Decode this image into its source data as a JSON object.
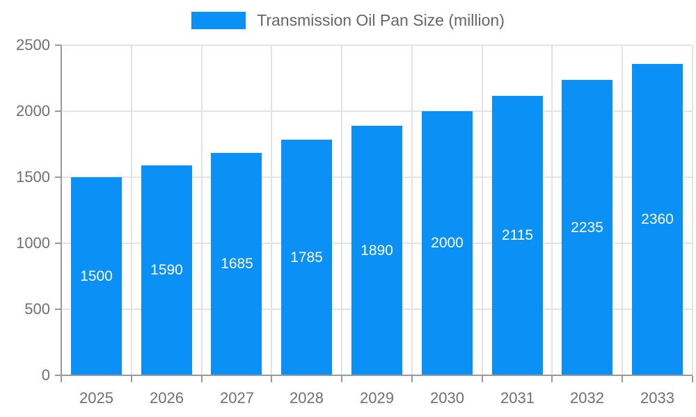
{
  "legend": {
    "series_label": "Transmission Oil Pan Size (million)"
  },
  "chart_data": {
    "type": "bar",
    "title": "Transmission Oil Pan Size (million)",
    "categories": [
      "2025",
      "2026",
      "2027",
      "2028",
      "2029",
      "2030",
      "2031",
      "2032",
      "2033"
    ],
    "values": [
      1500,
      1590,
      1685,
      1785,
      1890,
      2000,
      2115,
      2235,
      2360
    ],
    "value_labels": [
      "1500",
      "1590",
      "1685",
      "1785",
      "1890",
      "2000",
      "2115",
      "2235",
      "2360"
    ],
    "xlabel": "",
    "ylabel": "",
    "ylim": [
      0,
      2500
    ],
    "yticks": [
      0,
      500,
      1000,
      1500,
      2000,
      2500
    ],
    "ytick_labels": [
      "0",
      "500",
      "1000",
      "1500",
      "2000",
      "2500"
    ],
    "grid": true,
    "legend_position": "top-center",
    "bar_label_position": "center-inside",
    "colors": {
      "bar": "#0b90f5",
      "axis": "#999999",
      "gridline": "#e3e3e3",
      "tick_label": "#707070",
      "legend_text": "#666666",
      "bar_value_label": "#ffffff",
      "background": "#ffffff"
    }
  }
}
